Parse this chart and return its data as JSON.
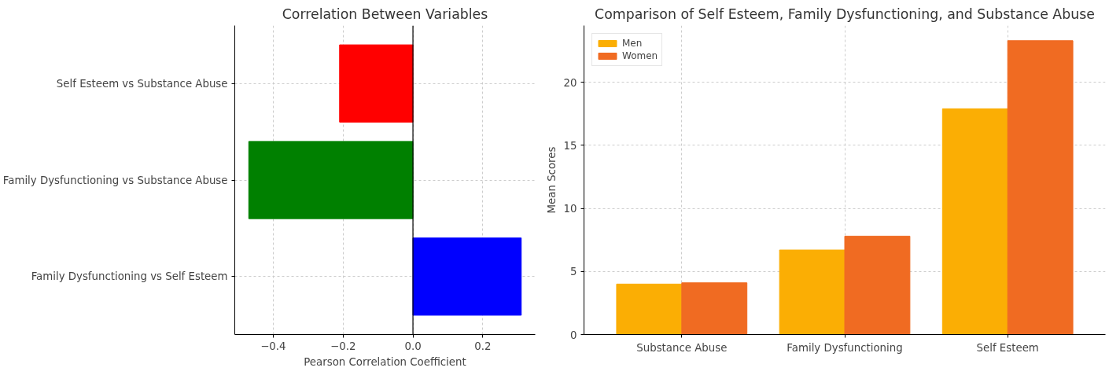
{
  "chart_data": [
    {
      "type": "bar",
      "orientation": "horizontal",
      "title": "Correlation Between Variables",
      "xlabel": "Pearson Correlation Coefficient",
      "categories": [
        "Self Esteem vs Substance Abuse",
        "Family Dysfunctioning vs Substance Abuse",
        "Family Dysfunctioning vs Self Esteem"
      ],
      "values": [
        -0.21,
        -0.47,
        0.31
      ],
      "colors": [
        "#ff0000",
        "#008000",
        "#0000ff"
      ],
      "xlim": [
        -0.51,
        0.35
      ],
      "xticks": [
        {
          "value": -0.4,
          "label": "−0.4"
        },
        {
          "value": -0.2,
          "label": "−0.2"
        },
        {
          "value": 0,
          "label": "0.0"
        },
        {
          "value": 0.2,
          "label": "0.2"
        }
      ],
      "ref_lines": [
        {
          "axis": "x",
          "value": 0,
          "color": "#000000"
        }
      ],
      "grid": true
    },
    {
      "type": "bar",
      "title": "Comparison of Self Esteem, Family Dysfunctioning, and Substance Abuse",
      "ylabel": "Mean Scores",
      "categories": [
        "Substance Abuse",
        "Family Dysfunctioning",
        "Self Esteem"
      ],
      "series": [
        {
          "name": "Men",
          "color": "#fbae04",
          "values": [
            4.0,
            6.7,
            17.9
          ]
        },
        {
          "name": "Women",
          "color": "#f06b22",
          "values": [
            4.1,
            7.8,
            23.3
          ]
        }
      ],
      "ylim": [
        0,
        24.5
      ],
      "yticks": [
        0,
        5,
        10,
        15,
        20
      ],
      "grid": true,
      "legend": "top left"
    }
  ]
}
